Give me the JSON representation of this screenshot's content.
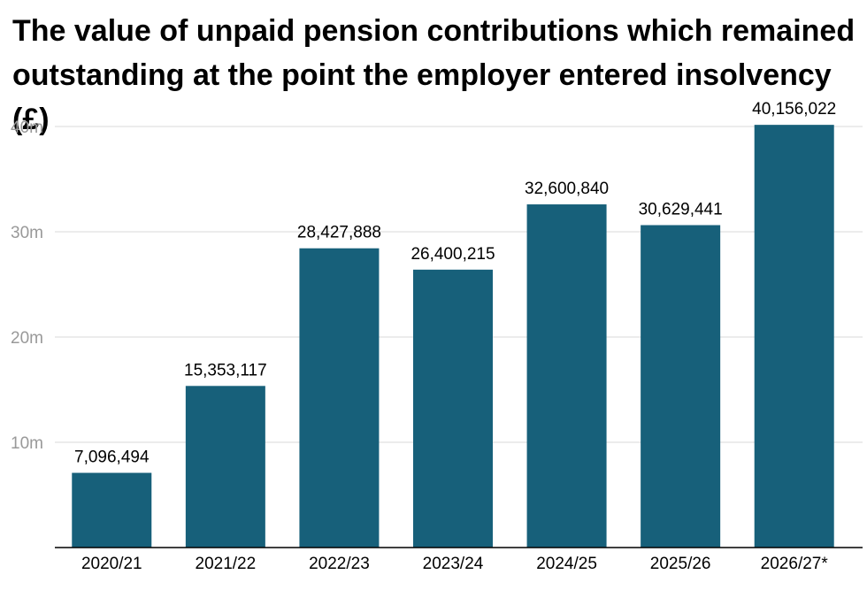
{
  "chart_data": {
    "type": "bar",
    "title": "The value of unpaid pension contributions which remained outstanding at the point the employer entered insolvency (£)",
    "categories": [
      "2020/21",
      "2021/22",
      "2022/23",
      "2023/24",
      "2024/25",
      "2025/26",
      "2026/27*"
    ],
    "values": [
      7096494,
      15353117,
      28427888,
      26400215,
      32600840,
      30629441,
      40156022
    ],
    "value_labels": [
      "7,096,494",
      "15,353,117",
      "28,427,888",
      "26,400,215",
      "32,600,840",
      "30,629,441",
      "40,156,022"
    ],
    "yticks": [
      10000000,
      20000000,
      30000000,
      40000000
    ],
    "ytick_labels": [
      "10m",
      "20m",
      "30m",
      "40m"
    ],
    "ylim": [
      0,
      40000000
    ],
    "xlabel": "",
    "ylabel": "",
    "grid": true,
    "colors": {
      "bar": "#17607a",
      "grid": "#e6e6e6",
      "axis": "#000000",
      "tick_text": "#999999"
    }
  }
}
